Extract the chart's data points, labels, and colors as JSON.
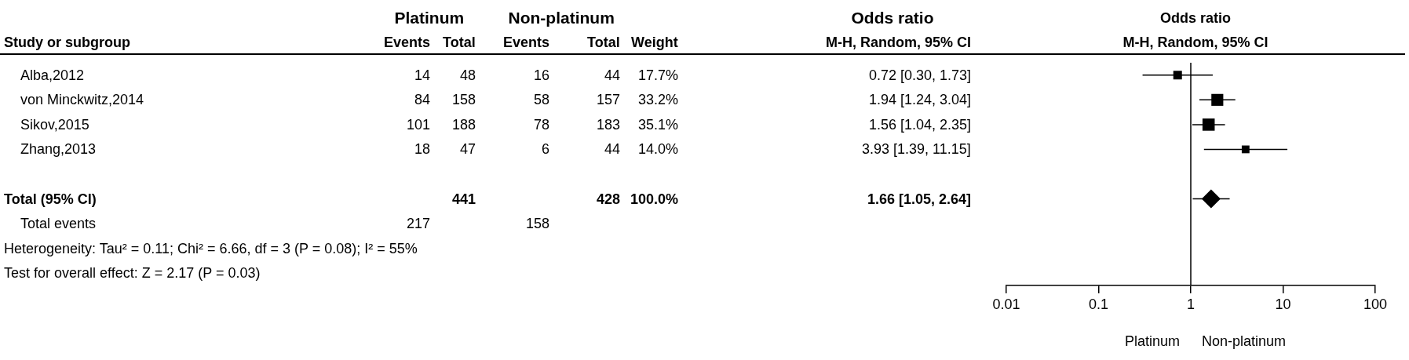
{
  "chart_data": [
    {
      "type": "other",
      "ylabel": "Study or subgroup",
      "categories": [
        "Events",
        "Total",
        "Events",
        "Total",
        "Weight",
        "M-H, Random, 95% CI"
      ],
      "y_categories": [
        "Alba,2012",
        "von Minckwitz,2014",
        "Sikov,2015",
        "Zhang,2013",
        "Total (95% CI)",
        "Total events"
      ],
      "cell_labels": [
        [
          "14",
          "48",
          "16",
          "44",
          "17.7%",
          "0.72 [0.30, 1.73]"
        ],
        [
          "84",
          "158",
          "58",
          "157",
          "33.2%",
          "1.94 [1.24, 3.04]"
        ],
        [
          "101",
          "188",
          "78",
          "183",
          "35.1%",
          "1.56 [1.04, 2.35]"
        ],
        [
          "18",
          "47",
          "6",
          "44",
          "14.0%",
          "3.93 [1.39, 11.15]"
        ],
        [
          null,
          "441",
          null,
          "428",
          "100.0%",
          "1.66 [1.05, 2.64]"
        ],
        [
          "217",
          null,
          "158",
          null,
          null,
          null
        ]
      ],
      "annotations": [
        "Platinum",
        "Non-platinum",
        "Odds ratio",
        "Heterogeneity: Tau² = 0.11; Chi² = 6.66, df = 3 (P = 0.08); I² = 55%",
        "Test for overall effect: Z = 2.17 (P = 0.03)"
      ]
    },
    {
      "type": "scatter",
      "orientation": "horizontal",
      "title": "Odds ratio",
      "subtitle": "M-H, Random, 95% CI",
      "categories": [
        null,
        null,
        null,
        null,
        null,
        null,
        null,
        null,
        null
      ],
      "series": [
        {
          "color": "#000000",
          "marker": "square",
          "values": [
            0.72,
            1.94,
            1.56,
            3.93,
            null,
            null,
            null,
            null,
            null
          ],
          "sizes": [
            0.5,
            0.95,
            1,
            0.4,
            null,
            null,
            null,
            null,
            null
          ],
          "errors": [
            [
              0.3,
              1.73
            ],
            [
              1.24,
              3.04
            ],
            [
              1.04,
              2.35
            ],
            [
              1.39,
              11.15
            ],
            null,
            null,
            null,
            null,
            null
          ]
        },
        {
          "color": "#000000",
          "marker": "diamond",
          "values": [
            null,
            null,
            null,
            null,
            null,
            1.66,
            null,
            null,
            null
          ],
          "errors": [
            null,
            null,
            null,
            null,
            null,
            [
              1.05,
              2.64
            ],
            null,
            null,
            null
          ]
        }
      ],
      "log": "x",
      "xlim": [
        0.01,
        100
      ],
      "xticks": [
        0.01,
        0.1,
        1,
        10,
        100
      ],
      "ref_lines": [
        {
          "axis": "x",
          "value": 1
        }
      ],
      "tick_labels": "x",
      "grid": false,
      "legend": false,
      "annotations": [
        "Platinum",
        "Non-platinum"
      ]
    }
  ]
}
